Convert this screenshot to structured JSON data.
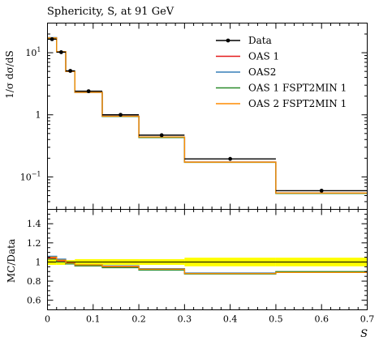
{
  "chart_data": [
    {
      "type": "line",
      "title": "Sphericity, S, at 91 GeV",
      "ylabel": "1/σ dσ/dS",
      "xlim": [
        0,
        0.7
      ],
      "ylim": [
        0.03,
        30
      ],
      "y_scale": "log",
      "legend_position": "top-right",
      "y_ticks": [
        {
          "value": 0.1,
          "base": "10",
          "exp": "−1"
        },
        {
          "value": 1,
          "base": "1",
          "exp": ""
        },
        {
          "value": 10,
          "base": "10",
          "exp": "1"
        }
      ],
      "bin_edges": [
        0,
        0.02,
        0.04,
        0.06,
        0.12,
        0.2,
        0.3,
        0.5,
        0.7
      ],
      "data": {
        "name": "Data",
        "x": [
          0.01,
          0.03,
          0.05,
          0.09,
          0.16,
          0.25,
          0.4,
          0.6
        ],
        "y": [
          16.5,
          10.2,
          5.1,
          2.4,
          1.0,
          0.47,
          0.195,
          0.06
        ],
        "color": "#000000"
      },
      "series": [
        {
          "name": "OAS 1",
          "color": "#e41a1c",
          "values": [
            17.2,
            10.3,
            5.0,
            2.3,
            0.95,
            0.44,
            0.174,
            0.055
          ]
        },
        {
          "name": "OAS2",
          "color": "#377eb8",
          "values": [
            17.5,
            10.4,
            5.0,
            2.3,
            0.95,
            0.44,
            0.174,
            0.055
          ]
        },
        {
          "name": "OAS 1 FSPT2MIN 1",
          "color": "#2a8a2a",
          "values": [
            17.0,
            10.3,
            5.05,
            2.3,
            0.94,
            0.43,
            0.171,
            0.054
          ]
        },
        {
          "name": "OAS 2 FSPT2MIN 1",
          "color": "#ff8c00",
          "values": [
            17.3,
            10.4,
            5.0,
            2.3,
            0.95,
            0.44,
            0.173,
            0.055
          ]
        }
      ]
    },
    {
      "type": "line",
      "ylabel": "MC/Data",
      "xlabel": "S",
      "xlim": [
        0,
        0.7
      ],
      "ylim": [
        0.5,
        1.55
      ],
      "x_ticks": [
        0,
        0.1,
        0.2,
        0.3,
        0.4,
        0.5,
        0.6,
        0.7
      ],
      "x_tick_labels": [
        "0",
        "0.1",
        "0.2",
        "0.3",
        "0.4",
        "0.5",
        "0.6",
        "0.7"
      ],
      "y_ticks": [
        0.6,
        0.8,
        1,
        1.2,
        1.4
      ],
      "y_tick_labels": [
        "0.6",
        "0.8",
        "1",
        "1.2",
        "1.4"
      ],
      "bin_edges": [
        0,
        0.02,
        0.04,
        0.06,
        0.12,
        0.2,
        0.3,
        0.5,
        0.7
      ],
      "uncertainty_band": {
        "color": "#ffff00",
        "low": [
          0.97,
          0.97,
          0.98,
          0.97,
          0.97,
          0.97,
          0.955,
          0.955
        ],
        "high": [
          1.03,
          1.03,
          1.02,
          1.03,
          1.03,
          1.03,
          1.045,
          1.045
        ]
      },
      "series": [
        {
          "name": "OAS 1",
          "color": "#e41a1c",
          "values": [
            1.04,
            1.01,
            0.98,
            0.96,
            0.95,
            0.92,
            0.88,
            0.89
          ]
        },
        {
          "name": "OAS2",
          "color": "#377eb8",
          "values": [
            1.06,
            1.03,
            0.99,
            0.97,
            0.96,
            0.93,
            0.885,
            0.895
          ]
        },
        {
          "name": "OAS 1 FSPT2MIN 1",
          "color": "#2a8a2a",
          "values": [
            1.03,
            1.0,
            0.98,
            0.96,
            0.94,
            0.915,
            0.875,
            0.9
          ]
        },
        {
          "name": "OAS 2 FSPT2MIN 1",
          "color": "#ff8c00",
          "values": [
            1.05,
            1.02,
            0.99,
            0.97,
            0.955,
            0.925,
            0.88,
            0.89
          ]
        }
      ]
    }
  ]
}
